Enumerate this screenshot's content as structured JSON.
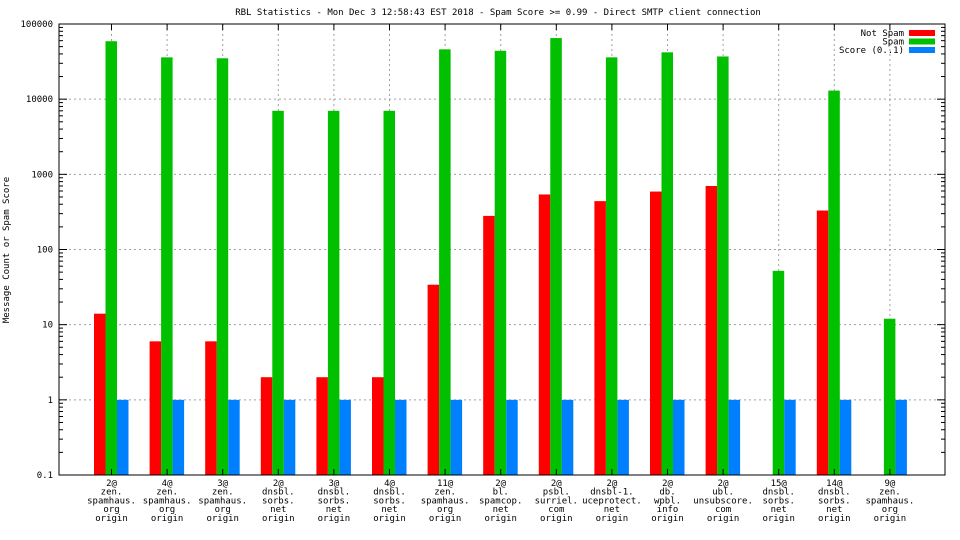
{
  "chart_data": {
    "type": "bar",
    "title": "RBL Statistics - Mon Dec  3 12:58:43 EST 2018 - Spam Score >= 0.99 - Direct SMTP client connection",
    "ylabel": "Message Count or Spam Score",
    "xlabel": "",
    "yscale": "log",
    "ylim": [
      0.1,
      100000
    ],
    "grid": true,
    "legend_position": "top-right",
    "y_ticks": [
      "0.1",
      "1",
      "10",
      "100",
      "1000",
      "10000",
      "100000"
    ],
    "categories": [
      [
        "2@",
        "zen.",
        "spamhaus.",
        "org",
        "origin"
      ],
      [
        "4@",
        "zen.",
        "spamhaus.",
        "org",
        "origin"
      ],
      [
        "3@",
        "zen.",
        "spamhaus.",
        "org",
        "origin"
      ],
      [
        "2@",
        "dnsbl.",
        "sorbs.",
        "net",
        "origin"
      ],
      [
        "3@",
        "dnsbl.",
        "sorbs.",
        "net",
        "origin"
      ],
      [
        "4@",
        "dnsbl.",
        "sorbs.",
        "net",
        "origin"
      ],
      [
        "11@",
        "zen.",
        "spamhaus.",
        "org",
        "origin"
      ],
      [
        "2@",
        "bl.",
        "spamcop.",
        "net",
        "origin"
      ],
      [
        "2@",
        "psbl.",
        "surriel.",
        "com",
        "origin"
      ],
      [
        "2@",
        "dnsbl-1.",
        "uceprotect.",
        "net",
        "origin"
      ],
      [
        "2@",
        "db.",
        "wpbl.",
        "info",
        "origin"
      ],
      [
        "2@",
        "ubl.",
        "unsubscore.",
        "com",
        "origin"
      ],
      [
        "15@",
        "dnsbl.",
        "sorbs.",
        "net",
        "origin"
      ],
      [
        "14@",
        "dnsbl.",
        "sorbs.",
        "net",
        "origin"
      ],
      [
        "9@",
        "zen.",
        "spamhaus.",
        "org",
        "origin"
      ]
    ],
    "series": [
      {
        "name": "Not Spam",
        "color": "#ff0000",
        "values": [
          14,
          6,
          6,
          2,
          2,
          2,
          34,
          280,
          540,
          440,
          590,
          700,
          null,
          330,
          null
        ]
      },
      {
        "name": "Spam",
        "color": "#00c000",
        "values": [
          59000,
          36000,
          35000,
          7000,
          7000,
          7000,
          46000,
          44000,
          65000,
          36000,
          42000,
          37000,
          52,
          13000,
          12
        ]
      },
      {
        "name": "Score (0..1)",
        "color": "#0080ff",
        "values": [
          1,
          1,
          1,
          1,
          1,
          1,
          1,
          1,
          1,
          1,
          1,
          1,
          1,
          1,
          1
        ]
      }
    ]
  }
}
